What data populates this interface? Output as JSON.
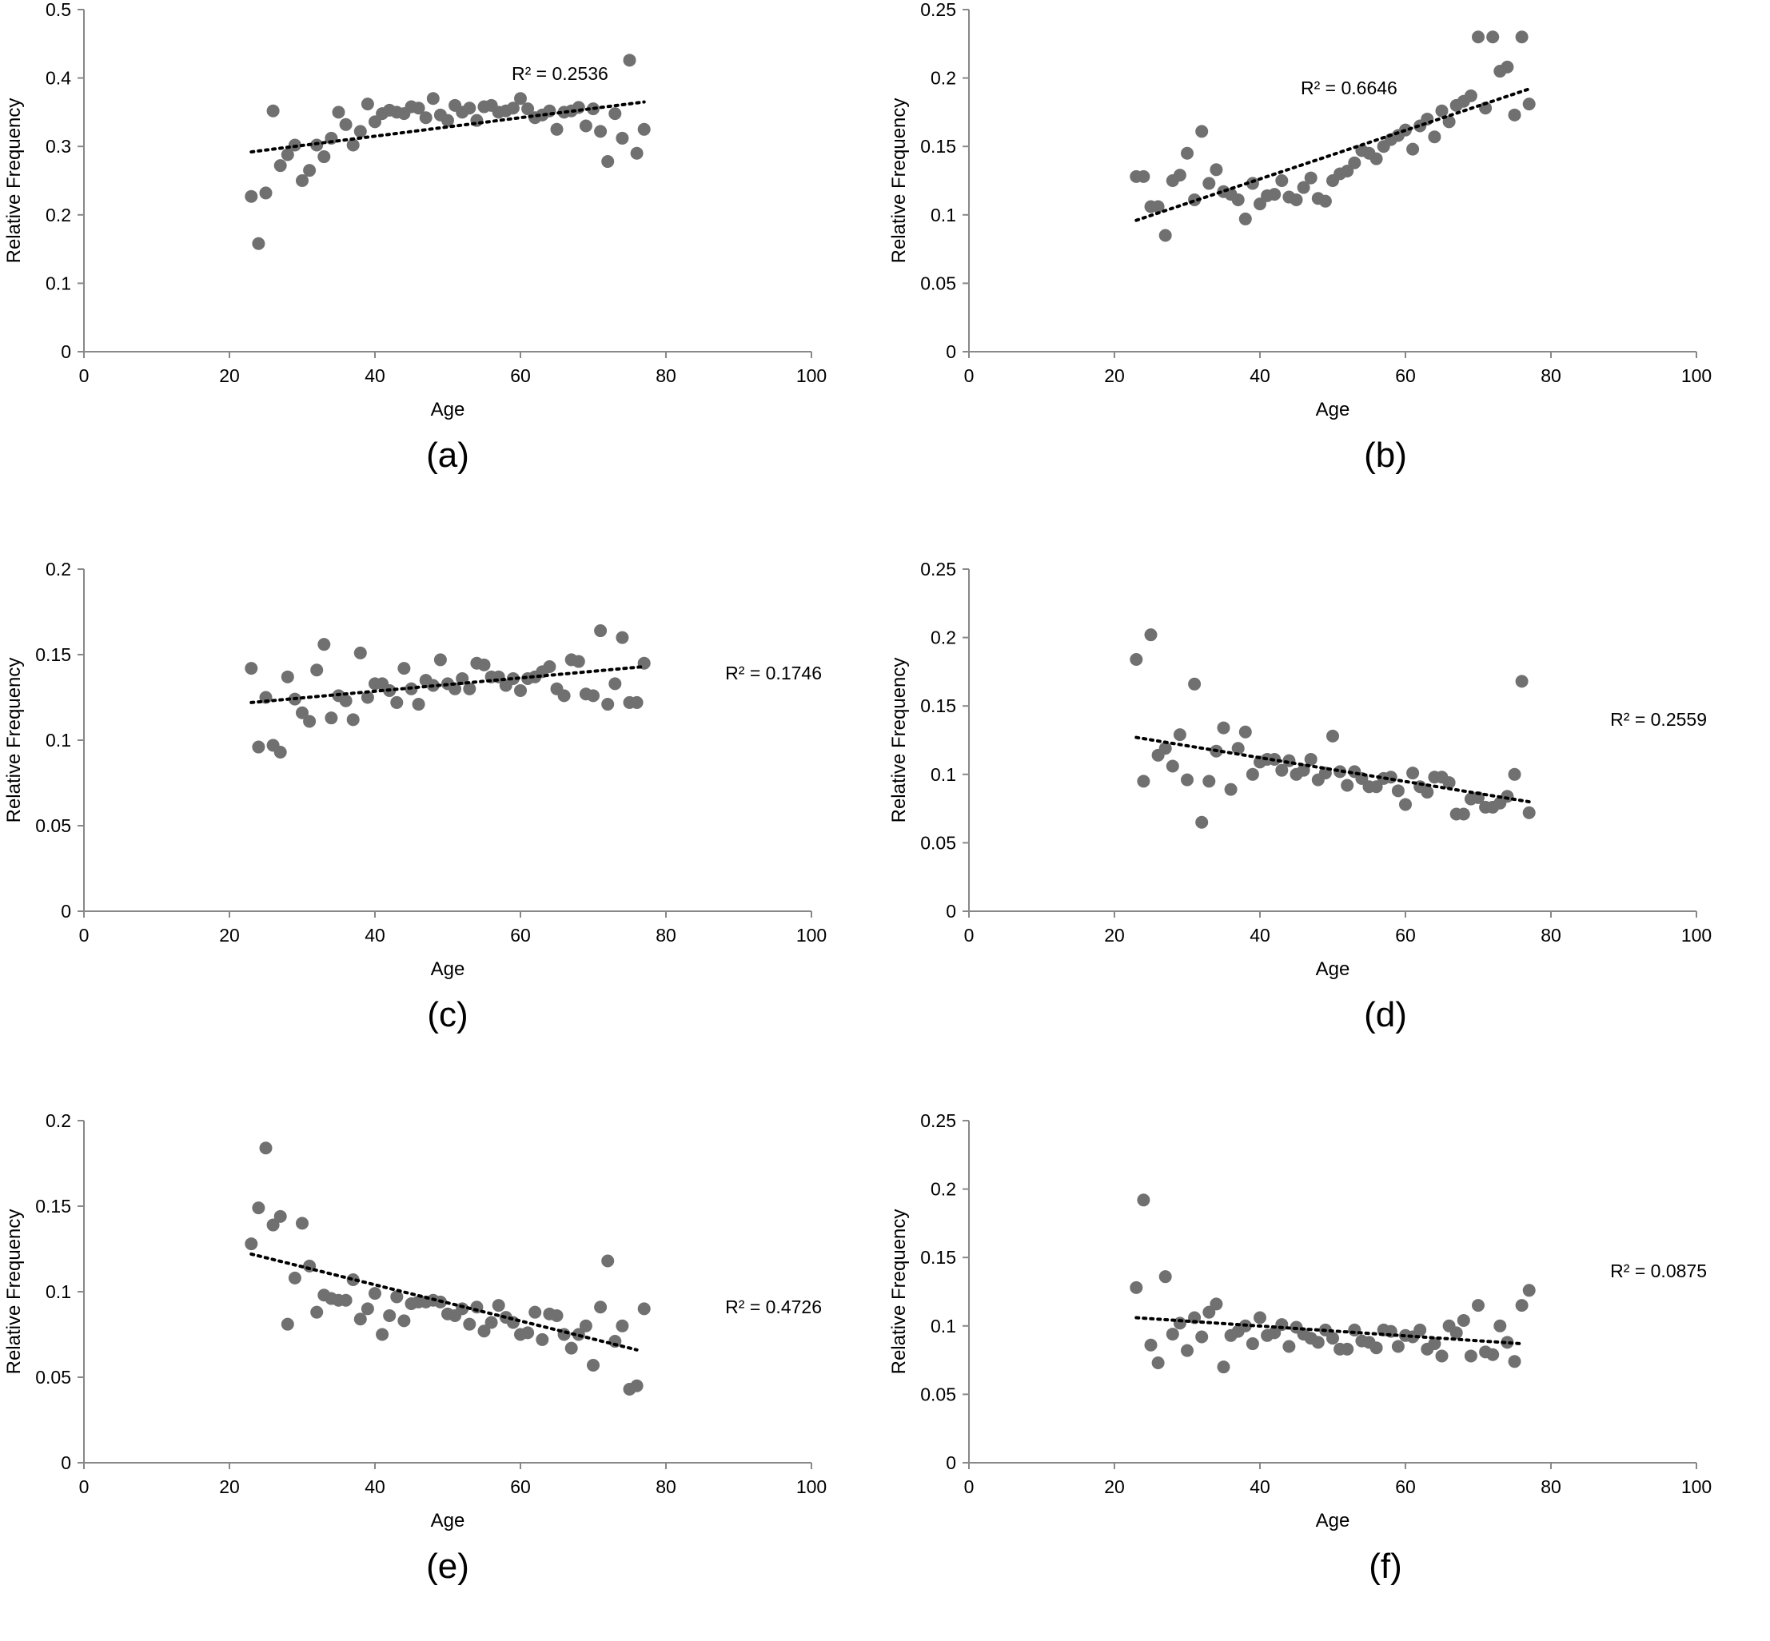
{
  "colors": {
    "point": "#707070",
    "trend": "#000000",
    "axis": "#888888"
  },
  "chart_data": [
    {
      "type": "scatter",
      "caption": "(a)",
      "xlabel": "Age",
      "ylabel": "Relative Frequency",
      "xlim": [
        0,
        100
      ],
      "ylim": [
        0,
        0.5
      ],
      "xticks": [
        "0",
        "20",
        "40",
        "60",
        "80",
        "100"
      ],
      "yticks": [
        "0",
        "0.1",
        "0.2",
        "0.3",
        "0.4",
        "0.5"
      ],
      "annotation": "R² = 0.2536",
      "trend": [
        [
          23,
          0.292
        ],
        [
          77,
          0.365
        ]
      ],
      "x": [
        23,
        24,
        25,
        26,
        27,
        28,
        29,
        30,
        31,
        32,
        33,
        34,
        35,
        36,
        37,
        38,
        39,
        40,
        41,
        42,
        43,
        44,
        45,
        46,
        47,
        48,
        49,
        50,
        51,
        52,
        53,
        54,
        55,
        56,
        57,
        58,
        59,
        60,
        61,
        62,
        63,
        64,
        65,
        66,
        67,
        68,
        69,
        70,
        71,
        72,
        73,
        74,
        75,
        76,
        77
      ],
      "y": [
        0.227,
        0.158,
        0.232,
        0.352,
        0.272,
        0.288,
        0.302,
        0.25,
        0.265,
        0.302,
        0.285,
        0.312,
        0.35,
        0.332,
        0.302,
        0.322,
        0.362,
        0.336,
        0.348,
        0.353,
        0.35,
        0.348,
        0.358,
        0.356,
        0.342,
        0.37,
        0.346,
        0.338,
        0.36,
        0.35,
        0.356,
        0.338,
        0.358,
        0.36,
        0.35,
        0.352,
        0.356,
        0.37,
        0.355,
        0.342,
        0.346,
        0.352,
        0.325,
        0.35,
        0.352,
        0.357,
        0.33,
        0.355,
        0.322,
        0.278,
        0.348,
        0.312,
        0.426,
        0.29,
        0.325
      ]
    },
    {
      "type": "scatter",
      "caption": "(b)",
      "xlabel": "Age",
      "ylabel": "Relative Frequency",
      "xlim": [
        0,
        100
      ],
      "ylim": [
        0,
        0.25
      ],
      "xticks": [
        "0",
        "20",
        "40",
        "60",
        "80",
        "100"
      ],
      "yticks": [
        "0",
        "0.05",
        "0.1",
        "0.15",
        "0.2",
        "0.25"
      ],
      "annotation": "R² = 0.6646",
      "trend": [
        [
          23,
          0.096
        ],
        [
          77,
          0.192
        ]
      ],
      "x": [
        23,
        24,
        25,
        26,
        27,
        28,
        29,
        30,
        31,
        32,
        33,
        34,
        35,
        36,
        37,
        38,
        39,
        40,
        41,
        42,
        43,
        44,
        45,
        46,
        47,
        48,
        49,
        50,
        51,
        52,
        53,
        54,
        55,
        56,
        57,
        58,
        59,
        60,
        61,
        62,
        63,
        64,
        65,
        66,
        67,
        68,
        69,
        70,
        71,
        72,
        73,
        74,
        75,
        76,
        77
      ],
      "y": [
        0.128,
        0.128,
        0.106,
        0.106,
        0.085,
        0.125,
        0.129,
        0.145,
        0.111,
        0.161,
        0.123,
        0.133,
        0.117,
        0.115,
        0.111,
        0.097,
        0.123,
        0.108,
        0.114,
        0.115,
        0.125,
        0.113,
        0.111,
        0.12,
        0.127,
        0.112,
        0.11,
        0.125,
        0.13,
        0.132,
        0.138,
        0.147,
        0.145,
        0.141,
        0.15,
        0.155,
        0.158,
        0.162,
        0.148,
        0.165,
        0.17,
        0.157,
        0.176,
        0.168,
        0.18,
        0.183,
        0.187,
        0.23,
        0.178,
        0.23,
        0.205,
        0.208,
        0.173,
        0.23,
        0.181
      ]
    },
    {
      "type": "scatter",
      "caption": "(c)",
      "xlabel": "Age",
      "ylabel": "Relative Frequency",
      "xlim": [
        0,
        100
      ],
      "ylim": [
        0,
        0.2
      ],
      "xticks": [
        "0",
        "20",
        "40",
        "60",
        "80",
        "100"
      ],
      "yticks": [
        "0",
        "0.05",
        "0.1",
        "0.15",
        "0.2"
      ],
      "annotation": "R² = 0.1746",
      "trend": [
        [
          23,
          0.122
        ],
        [
          77,
          0.143
        ]
      ],
      "x": [
        23,
        24,
        25,
        26,
        27,
        28,
        29,
        30,
        31,
        32,
        33,
        34,
        35,
        36,
        37,
        38,
        39,
        40,
        41,
        42,
        43,
        44,
        45,
        46,
        47,
        48,
        49,
        50,
        51,
        52,
        53,
        54,
        55,
        56,
        57,
        58,
        59,
        60,
        61,
        62,
        63,
        64,
        65,
        66,
        67,
        68,
        69,
        70,
        71,
        72,
        73,
        74,
        75,
        76,
        77
      ],
      "y": [
        0.142,
        0.096,
        0.125,
        0.097,
        0.093,
        0.137,
        0.124,
        0.116,
        0.111,
        0.141,
        0.156,
        0.113,
        0.126,
        0.123,
        0.112,
        0.151,
        0.125,
        0.133,
        0.133,
        0.129,
        0.122,
        0.142,
        0.13,
        0.121,
        0.135,
        0.132,
        0.147,
        0.133,
        0.13,
        0.136,
        0.13,
        0.145,
        0.144,
        0.137,
        0.137,
        0.132,
        0.136,
        0.129,
        0.136,
        0.137,
        0.14,
        0.143,
        0.13,
        0.126,
        0.147,
        0.146,
        0.127,
        0.126,
        0.164,
        0.121,
        0.133,
        0.16,
        0.122,
        0.122,
        0.145
      ]
    },
    {
      "type": "scatter",
      "caption": "(d)",
      "xlabel": "Age",
      "ylabel": "Relative Frequency",
      "xlim": [
        0,
        100
      ],
      "ylim": [
        0,
        0.25
      ],
      "xticks": [
        "0",
        "20",
        "40",
        "60",
        "80",
        "100"
      ],
      "yticks": [
        "0",
        "0.05",
        "0.1",
        "0.15",
        "0.2",
        "0.25"
      ],
      "annotation": "R² = 0.2559",
      "trend": [
        [
          23,
          0.127
        ],
        [
          77,
          0.08
        ]
      ],
      "x": [
        23,
        24,
        25,
        26,
        27,
        28,
        29,
        30,
        31,
        32,
        33,
        34,
        35,
        36,
        37,
        38,
        39,
        40,
        41,
        42,
        43,
        44,
        45,
        46,
        47,
        48,
        49,
        50,
        51,
        52,
        53,
        54,
        55,
        56,
        57,
        58,
        59,
        60,
        61,
        62,
        63,
        64,
        65,
        66,
        67,
        68,
        69,
        70,
        71,
        72,
        73,
        74,
        75,
        76,
        77
      ],
      "y": [
        0.184,
        0.095,
        0.202,
        0.114,
        0.119,
        0.106,
        0.129,
        0.096,
        0.166,
        0.065,
        0.095,
        0.117,
        0.134,
        0.089,
        0.119,
        0.131,
        0.1,
        0.109,
        0.111,
        0.111,
        0.103,
        0.11,
        0.1,
        0.103,
        0.111,
        0.096,
        0.101,
        0.128,
        0.102,
        0.092,
        0.102,
        0.097,
        0.091,
        0.091,
        0.097,
        0.098,
        0.088,
        0.078,
        0.101,
        0.091,
        0.087,
        0.098,
        0.098,
        0.094,
        0.071,
        0.071,
        0.082,
        0.083,
        0.076,
        0.076,
        0.079,
        0.084,
        0.1,
        0.168,
        0.072
      ]
    },
    {
      "type": "scatter",
      "caption": "(e)",
      "xlabel": "Age",
      "ylabel": "Relative Frequency",
      "xlim": [
        0,
        100
      ],
      "ylim": [
        0,
        0.2
      ],
      "xticks": [
        "0",
        "20",
        "40",
        "60",
        "80",
        "100"
      ],
      "yticks": [
        "0",
        "0.05",
        "0.1",
        "0.15",
        "0.2"
      ],
      "annotation": "R² = 0.4726",
      "trend": [
        [
          23,
          0.122
        ],
        [
          76,
          0.066
        ]
      ],
      "x": [
        23,
        24,
        25,
        26,
        27,
        28,
        29,
        30,
        31,
        32,
        33,
        34,
        35,
        36,
        37,
        38,
        39,
        40,
        41,
        42,
        43,
        44,
        45,
        46,
        47,
        48,
        49,
        50,
        51,
        52,
        53,
        54,
        55,
        56,
        57,
        58,
        59,
        60,
        61,
        62,
        63,
        64,
        65,
        66,
        67,
        68,
        69,
        70,
        71,
        72,
        73,
        74,
        75,
        76,
        77
      ],
      "y": [
        0.128,
        0.149,
        0.184,
        0.139,
        0.144,
        0.081,
        0.108,
        0.14,
        0.115,
        0.088,
        0.098,
        0.096,
        0.095,
        0.095,
        0.107,
        0.084,
        0.09,
        0.099,
        0.075,
        0.086,
        0.097,
        0.083,
        0.093,
        0.094,
        0.094,
        0.095,
        0.094,
        0.087,
        0.086,
        0.09,
        0.081,
        0.091,
        0.077,
        0.082,
        0.092,
        0.085,
        0.082,
        0.075,
        0.076,
        0.088,
        0.072,
        0.087,
        0.086,
        0.075,
        0.067,
        0.075,
        0.08,
        0.057,
        0.091,
        0.118,
        0.071,
        0.08,
        0.043,
        0.045,
        0.09
      ]
    },
    {
      "type": "scatter",
      "caption": "(f)",
      "xlabel": "Age",
      "ylabel": "Relative Frequency",
      "xlim": [
        0,
        100
      ],
      "ylim": [
        0,
        0.25
      ],
      "xticks": [
        "0",
        "20",
        "40",
        "60",
        "80",
        "100"
      ],
      "yticks": [
        "0",
        "0.05",
        "0.1",
        "0.15",
        "0.2",
        "0.25"
      ],
      "annotation": "R² = 0.0875",
      "trend": [
        [
          23,
          0.106
        ],
        [
          76,
          0.087
        ]
      ],
      "x": [
        23,
        24,
        25,
        26,
        27,
        28,
        29,
        30,
        31,
        32,
        33,
        34,
        35,
        36,
        37,
        38,
        39,
        40,
        41,
        42,
        43,
        44,
        45,
        46,
        47,
        48,
        49,
        50,
        51,
        52,
        53,
        54,
        55,
        56,
        57,
        58,
        59,
        60,
        61,
        62,
        63,
        64,
        65,
        66,
        67,
        68,
        69,
        70,
        71,
        72,
        73,
        74,
        75,
        76,
        77
      ],
      "y": [
        0.128,
        0.192,
        0.086,
        0.073,
        0.136,
        0.094,
        0.102,
        0.082,
        0.106,
        0.092,
        0.11,
        0.116,
        0.07,
        0.093,
        0.096,
        0.1,
        0.087,
        0.106,
        0.093,
        0.095,
        0.101,
        0.085,
        0.099,
        0.094,
        0.091,
        0.088,
        0.097,
        0.091,
        0.083,
        0.083,
        0.097,
        0.089,
        0.088,
        0.084,
        0.097,
        0.096,
        0.085,
        0.093,
        0.092,
        0.097,
        0.083,
        0.087,
        0.078,
        0.1,
        0.095,
        0.104,
        0.078,
        0.115,
        0.081,
        0.079,
        0.1,
        0.088,
        0.074,
        0.115,
        0.126
      ]
    }
  ]
}
